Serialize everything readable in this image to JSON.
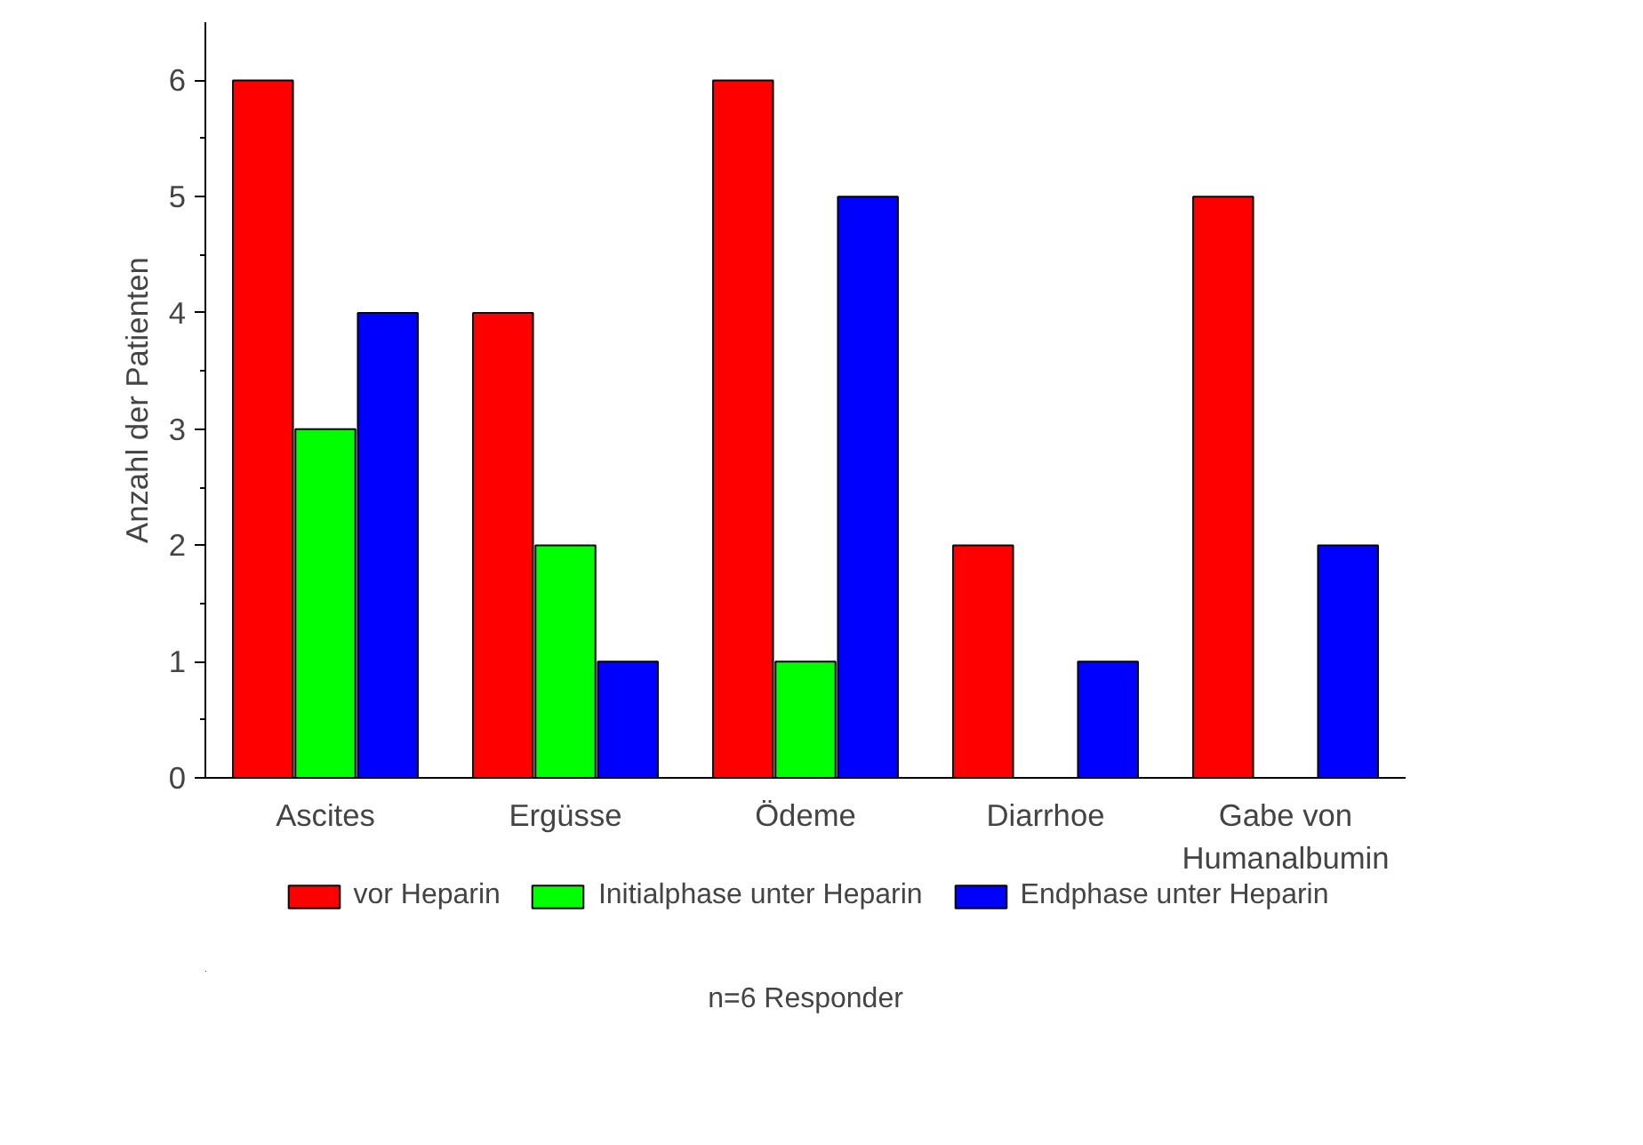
{
  "chart_data": {
    "type": "bar",
    "ylabel": "Anzahl der Patienten",
    "categories": [
      "Ascites",
      "Ergüsse",
      "Ödeme",
      "Diarrhoe",
      "Gabe von\nHumanalbumin"
    ],
    "series": [
      {
        "name": "vor Heparin",
        "color": "#ff0000",
        "values": [
          6,
          4,
          6,
          2,
          5
        ]
      },
      {
        "name": "Initialphase unter Heparin",
        "color": "#00ff00",
        "values": [
          3,
          2,
          1,
          0,
          0
        ]
      },
      {
        "name": "Endphase unter Heparin",
        "color": "#0000ff",
        "values": [
          4,
          1,
          5,
          1,
          2
        ]
      }
    ],
    "ylim": [
      0,
      6.5
    ],
    "yticks": [
      0,
      1,
      2,
      3,
      4,
      5,
      6
    ],
    "grid": false,
    "legend": "bottom",
    "annotations": [
      "n=6 Responder"
    ]
  }
}
